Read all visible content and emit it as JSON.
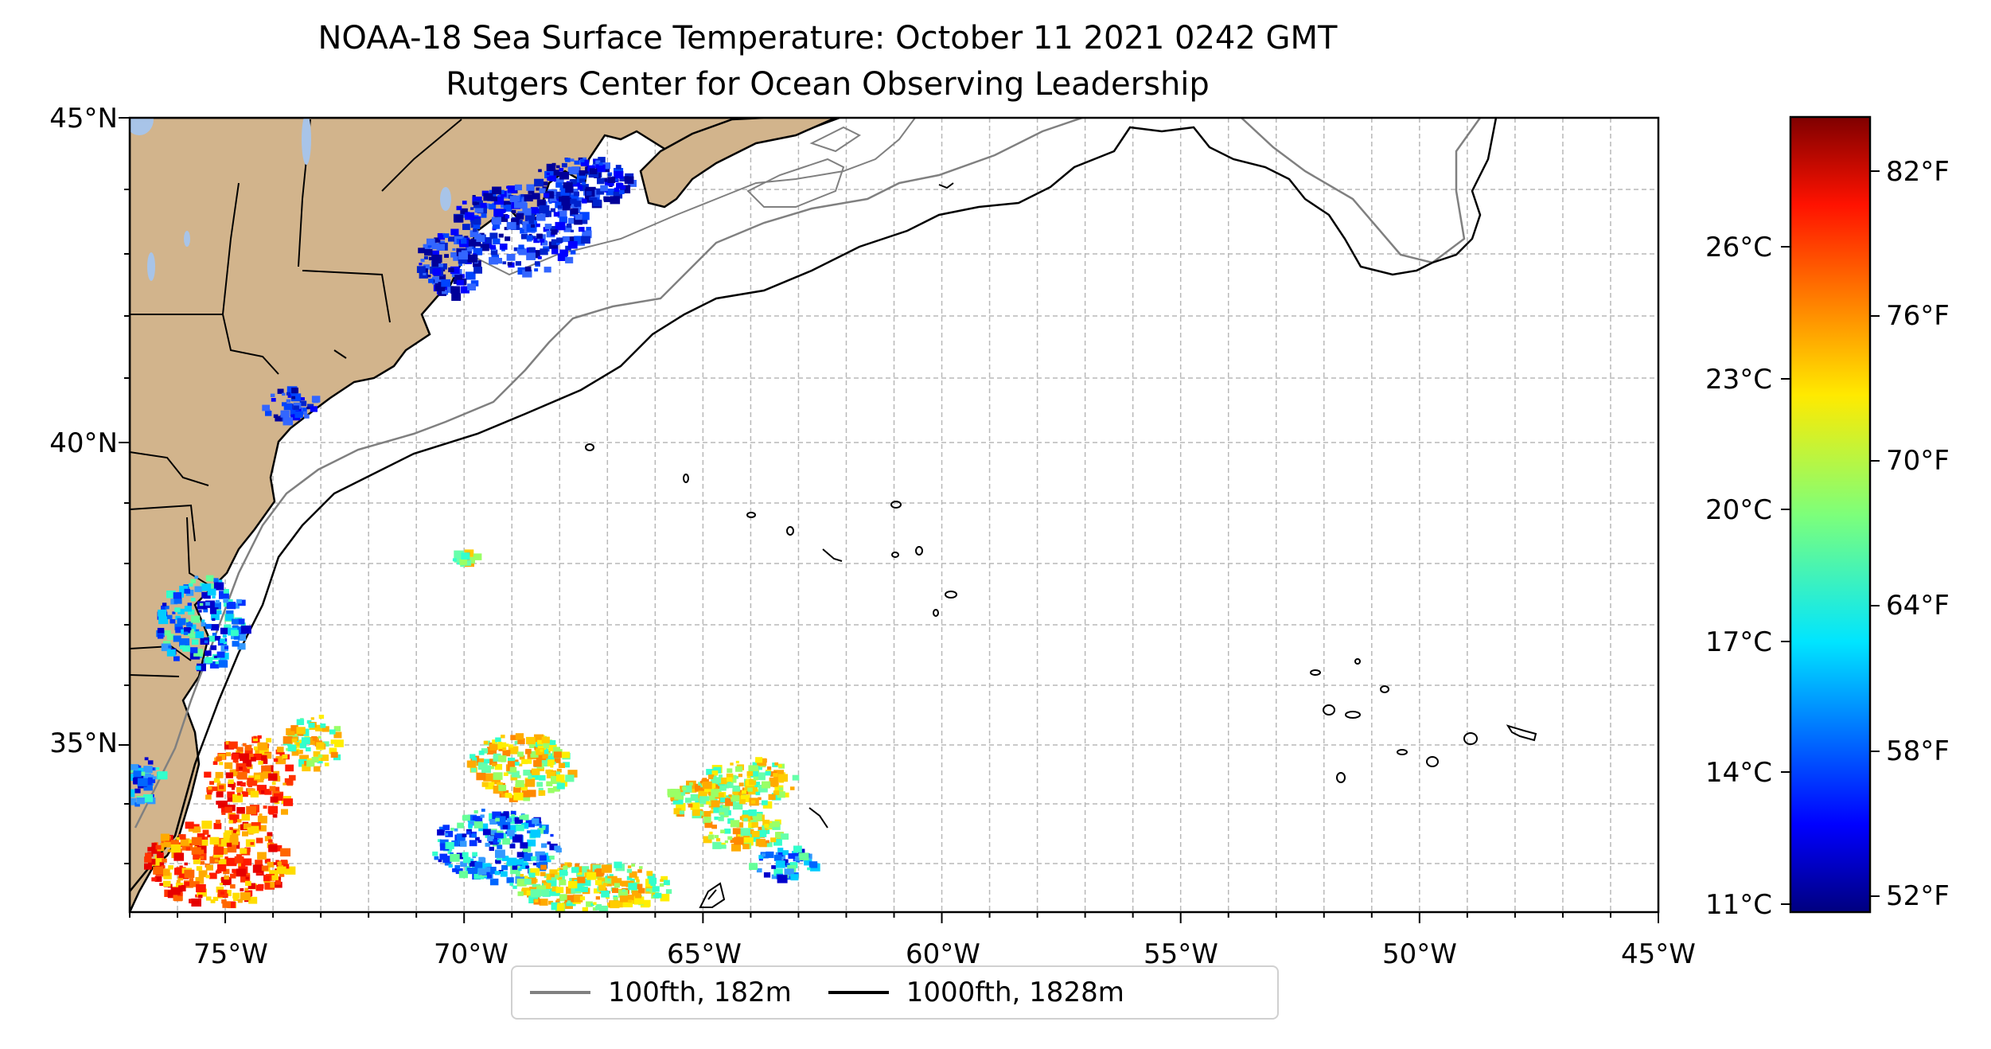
{
  "map": {
    "title_line1": "NOAA-18 Sea Surface Temperature: October 11 2021 0242 GMT",
    "title_line2": "Rutgers Center for Ocean Observing Leadership",
    "lon_ticks": [
      "75°W",
      "70°W",
      "65°W",
      "60°W",
      "55°W",
      "50°W",
      "45°W"
    ],
    "lat_ticks": [
      "45°N",
      "40°N",
      "35°N"
    ],
    "land_color": "#d2b48c",
    "lake_color": "#a8c4e8"
  },
  "colorbar": {
    "fahrenheit_ticks": [
      "82°F",
      "76°F",
      "70°F",
      "64°F",
      "58°F",
      "52°F"
    ],
    "celsius_ticks": [
      "26°C",
      "23°C",
      "20°C",
      "17°C",
      "14°C",
      "11°C"
    ],
    "colormap": "jet",
    "range_f": [
      51,
      85
    ]
  },
  "legend": {
    "items": [
      {
        "label": "100fth, 182m",
        "color": "#808080"
      },
      {
        "label": "1000fth, 1828m",
        "color": "#000000"
      }
    ]
  }
}
